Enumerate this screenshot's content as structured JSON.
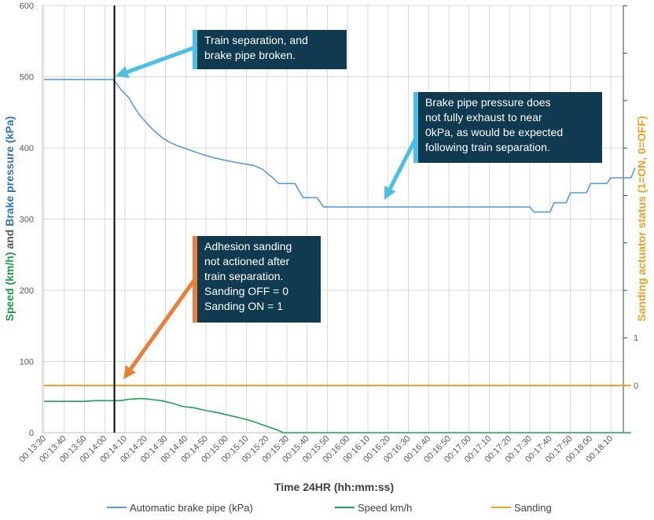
{
  "chart_data": {
    "type": "line",
    "xlabel": "Time 24HR (hh:mm:ss)",
    "ylabel_left_parts": [
      {
        "text": "Speed (km/h)",
        "color": "#1a9e4a"
      },
      {
        "text": " and ",
        "color": "#595959"
      },
      {
        "text": "Brake pressure (kPa)",
        "color": "#2e75b6"
      }
    ],
    "ylabel_right": "Sanding actuator status (1=ON, 0=OFF)",
    "ylim_left": [
      0,
      600
    ],
    "left_ticks": [
      "0",
      "100",
      "200",
      "300",
      "400",
      "500",
      "600"
    ],
    "right_ticks": [
      "0",
      "1"
    ],
    "x_ticks": [
      "00:13:30",
      "00:13:40",
      "00:13:50",
      "00:14:00",
      "00:14:10",
      "00:14:20",
      "00:14:30",
      "00:14:40",
      "00:14:50",
      "00:15:00",
      "00:15:10",
      "00:15:20",
      "00:15:30",
      "00:15:40",
      "00:15:50",
      "00:16:00",
      "00:16:10",
      "00:16:20",
      "00:16:30",
      "00:16:40",
      "00:16:50",
      "00:17:00",
      "00:17:10",
      "00:17:20",
      "00:17:30",
      "00:17:40",
      "00:17:50",
      "00:18:00",
      "00:18:10"
    ],
    "x_range_seconds_from_first_tick": [
      0,
      290
    ],
    "vertical_marker_seconds": 34,
    "series": [
      {
        "name": "Automatic brake pipe (kPa)",
        "color": "#5b9bd5",
        "axis": "left",
        "points": [
          [
            0,
            496
          ],
          [
            34,
            496
          ],
          [
            36,
            490
          ],
          [
            38,
            482
          ],
          [
            42,
            470
          ],
          [
            44,
            460
          ],
          [
            47,
            447
          ],
          [
            50,
            437
          ],
          [
            53,
            428
          ],
          [
            56,
            420
          ],
          [
            59,
            413
          ],
          [
            62,
            408
          ],
          [
            66,
            403
          ],
          [
            70,
            399
          ],
          [
            74,
            395
          ],
          [
            78,
            391
          ],
          [
            84,
            386
          ],
          [
            94,
            380
          ],
          [
            104,
            375
          ],
          [
            108,
            370
          ],
          [
            110,
            365
          ],
          [
            113,
            358
          ],
          [
            116,
            350
          ],
          [
            124,
            350
          ],
          [
            128,
            330
          ],
          [
            135,
            330
          ],
          [
            138,
            317
          ],
          [
            240,
            317
          ],
          [
            242,
            310
          ],
          [
            250,
            310
          ],
          [
            252,
            323
          ],
          [
            258,
            323
          ],
          [
            260,
            337
          ],
          [
            268,
            337
          ],
          [
            270,
            350
          ],
          [
            278,
            350
          ],
          [
            280,
            358
          ],
          [
            290,
            358
          ],
          [
            292,
            372
          ]
        ]
      },
      {
        "name": "Speed km/h",
        "color": "#1fa055",
        "axis": "left",
        "points": [
          [
            0,
            44
          ],
          [
            20,
            44
          ],
          [
            25,
            45
          ],
          [
            38,
            45
          ],
          [
            42,
            47
          ],
          [
            48,
            48
          ],
          [
            52,
            47
          ],
          [
            58,
            45
          ],
          [
            64,
            41
          ],
          [
            68,
            37
          ],
          [
            74,
            35
          ],
          [
            80,
            31
          ],
          [
            86,
            28
          ],
          [
            92,
            24
          ],
          [
            98,
            20
          ],
          [
            104,
            15
          ],
          [
            110,
            9
          ],
          [
            116,
            3
          ],
          [
            118,
            0
          ],
          [
            290,
            0
          ]
        ]
      },
      {
        "name": "Sanding",
        "color": "#f0a020",
        "axis": "right",
        "points": [
          [
            0,
            0
          ],
          [
            290,
            0
          ]
        ]
      }
    ],
    "legend_position": "bottom"
  },
  "annotations": {
    "separation": "Train separation,  and\nbrake pipe broken.",
    "pressure": "Brake pipe pressure does\nnot fully exhaust to near\n0kPa, as would be expected\nfollowing  train separation.",
    "sanding": "Adhesion  sanding\nnot  actioned  after\ntrain separation.\nSanding  OFF  = 0\nSanding  ON  = 1"
  },
  "colors": {
    "callout_bg": "#0f3a4f",
    "arrow_blue": "#4bc0e4",
    "arrow_orange": "#e8803b",
    "grid": "#d9d9d9",
    "right_axis_title": "#f0a020"
  }
}
